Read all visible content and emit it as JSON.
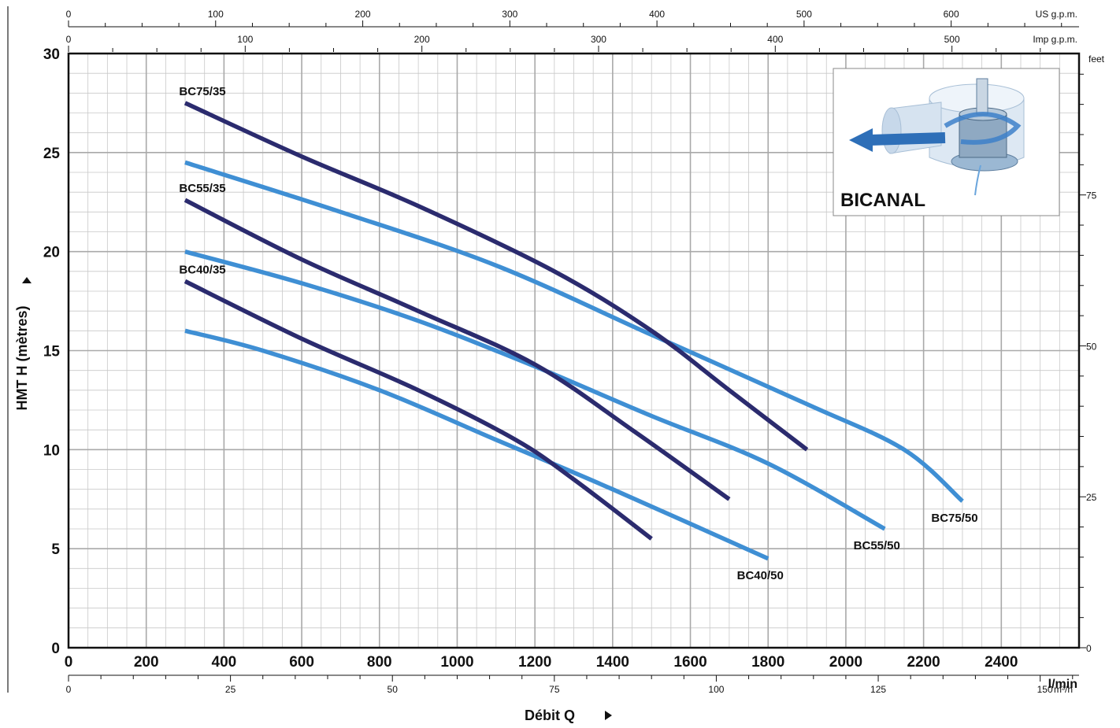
{
  "chart_data": {
    "type": "line",
    "ylabel": "HMT  H  (mètres)",
    "xlabel": "Débit  Q",
    "x_unit": "l/min",
    "xlim": [
      0,
      2600
    ],
    "ylim": [
      0,
      30
    ],
    "x_ticks": [
      0,
      200,
      400,
      600,
      800,
      1000,
      1200,
      1400,
      1600,
      1800,
      2000,
      2200,
      2400
    ],
    "y_ticks": [
      0,
      5,
      10,
      15,
      20,
      25,
      30
    ],
    "top_axis_us": {
      "unit": "US g.p.m.",
      "ticks": [
        0,
        100,
        200,
        300,
        400,
        500,
        600
      ],
      "lpm_per_unit": 3.785
    },
    "top_axis_imp": {
      "unit": "Imp g.p.m.",
      "ticks": [
        0,
        100,
        200,
        300,
        400,
        500
      ],
      "lpm_per_unit": 4.546
    },
    "bottom_axis_m3h": {
      "unit": "m³/h",
      "ticks": [
        0,
        25,
        50,
        75,
        100,
        125,
        150
      ]
    },
    "right_axis_feet": {
      "unit": "feet",
      "ticks": [
        0,
        25,
        50,
        75
      ]
    },
    "inset_label": "BICANAL",
    "colors": {
      "dark": "#2b2b6e",
      "light": "#3f8fd4",
      "grid": "#c8c8c8"
    },
    "series": [
      {
        "name": "BC75/35",
        "color": "dark",
        "label_pos": "start",
        "points": [
          [
            300,
            27.5
          ],
          [
            600,
            24.8
          ],
          [
            900,
            22.3
          ],
          [
            1250,
            19.0
          ],
          [
            1500,
            16.0
          ],
          [
            1700,
            13.0
          ],
          [
            1900,
            10.0
          ]
        ]
      },
      {
        "name": "BC55/35",
        "color": "dark",
        "label_pos": "start",
        "points": [
          [
            300,
            22.6
          ],
          [
            600,
            19.6
          ],
          [
            900,
            17.0
          ],
          [
            1200,
            14.3
          ],
          [
            1450,
            11.0
          ],
          [
            1700,
            7.5
          ]
        ]
      },
      {
        "name": "BC40/35",
        "color": "dark",
        "label_pos": "start",
        "points": [
          [
            300,
            18.5
          ],
          [
            600,
            15.6
          ],
          [
            900,
            13.0
          ],
          [
            1150,
            10.5
          ],
          [
            1300,
            8.5
          ],
          [
            1500,
            5.5
          ]
        ]
      },
      {
        "name": "BC75/50",
        "color": "light",
        "label_pos": "end",
        "points": [
          [
            300,
            24.5
          ],
          [
            700,
            22.0
          ],
          [
            1100,
            19.3
          ],
          [
            1500,
            15.8
          ],
          [
            1900,
            12.3
          ],
          [
            2150,
            10.0
          ],
          [
            2300,
            7.4
          ]
        ]
      },
      {
        "name": "BC55/50",
        "color": "light",
        "label_pos": "end",
        "points": [
          [
            300,
            20.0
          ],
          [
            600,
            18.4
          ],
          [
            900,
            16.5
          ],
          [
            1200,
            14.2
          ],
          [
            1500,
            11.7
          ],
          [
            1800,
            9.3
          ],
          [
            2100,
            6.0
          ]
        ]
      },
      {
        "name": "BC40/50",
        "color": "light",
        "label_pos": "end",
        "points": [
          [
            300,
            16.0
          ],
          [
            500,
            15.0
          ],
          [
            800,
            13.0
          ],
          [
            1100,
            10.5
          ],
          [
            1400,
            8.0
          ],
          [
            1800,
            4.5
          ]
        ]
      }
    ]
  }
}
